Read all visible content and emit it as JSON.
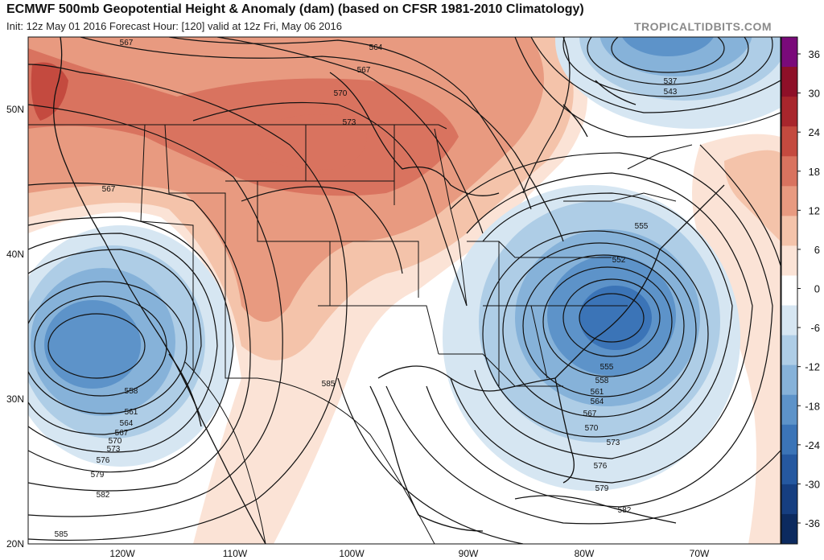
{
  "header": {
    "title": "ECMWF 500mb Geopotential Height & Anomaly (dam) (based on CFSR 1981-2010 Climatology)",
    "subtitle": "Init: 12z May 01 2016   Forecast Hour: [120]   valid at 12z Fri, May 06 2016",
    "watermark": "TROPICALTIDBITS.COM"
  },
  "axes": {
    "lat_labels": [
      "50N",
      "40N",
      "30N",
      "20N"
    ],
    "lon_labels": [
      "120W",
      "110W",
      "100W",
      "90W",
      "80W",
      "70W"
    ]
  },
  "colorbar": {
    "ticks": [
      "36",
      "30",
      "24",
      "18",
      "12",
      "6",
      "0",
      "-6",
      "-12",
      "-18",
      "-24",
      "-30",
      "-36"
    ],
    "colors": [
      "#7a0a7a",
      "#8e1028",
      "#a8262c",
      "#c44a3f",
      "#d9735f",
      "#e89a80",
      "#f4c3aa",
      "#fbe3d6",
      "#ffffff",
      "#d6e6f2",
      "#aecde6",
      "#86b2d9",
      "#5d93c9",
      "#3b74b7",
      "#2558a0",
      "#163e80",
      "#0c2a5f"
    ]
  },
  "contour_labels": [
    {
      "text": "567"
    },
    {
      "text": "564"
    },
    {
      "text": "567"
    },
    {
      "text": "570"
    },
    {
      "text": "573"
    },
    {
      "text": "567"
    },
    {
      "text": "537"
    },
    {
      "text": "543"
    },
    {
      "text": "555"
    },
    {
      "text": "552"
    },
    {
      "text": "555"
    },
    {
      "text": "558"
    },
    {
      "text": "561"
    },
    {
      "text": "564"
    },
    {
      "text": "567"
    },
    {
      "text": "570"
    },
    {
      "text": "573"
    },
    {
      "text": "576"
    },
    {
      "text": "579"
    },
    {
      "text": "582"
    },
    {
      "text": "558"
    },
    {
      "text": "561"
    },
    {
      "text": "564"
    },
    {
      "text": "567"
    },
    {
      "text": "570"
    },
    {
      "text": "573"
    },
    {
      "text": "576"
    },
    {
      "text": "579"
    },
    {
      "text": "582"
    },
    {
      "text": "585"
    },
    {
      "text": "585"
    }
  ]
}
